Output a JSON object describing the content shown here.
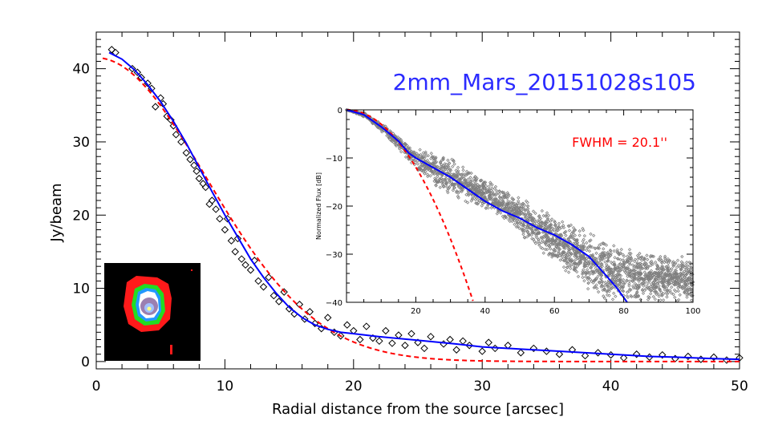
{
  "chart_data": [
    {
      "type": "scatter",
      "title": "2mm_Mars_20151028s105",
      "xlabel": "Radial distance from the source [arcsec]",
      "ylabel": "Jy/beam",
      "xlim": [
        0,
        50
      ],
      "ylim": [
        -1,
        45
      ],
      "xticks": [
        0,
        10,
        20,
        30,
        40,
        50
      ],
      "yticks": [
        0,
        10,
        20,
        30,
        40
      ],
      "grid": false,
      "colors": {
        "title": "#2b2bff",
        "points": "#000000",
        "profile": "#0000ff",
        "gaussian": "#ff0000"
      },
      "points": [
        [
          1.2,
          42.6
        ],
        [
          1.5,
          42.2
        ],
        [
          2.8,
          40
        ],
        [
          3.2,
          39.5
        ],
        [
          3.5,
          38.8
        ],
        [
          4,
          38
        ],
        [
          4.3,
          37.3
        ],
        [
          4.6,
          34.8
        ],
        [
          5,
          36
        ],
        [
          5.2,
          35.2
        ],
        [
          5.5,
          33.5
        ],
        [
          5.8,
          33
        ],
        [
          6,
          32.2
        ],
        [
          6.2,
          31
        ],
        [
          6.6,
          30
        ],
        [
          7,
          28.5
        ],
        [
          7.3,
          27.6
        ],
        [
          7.6,
          26.8
        ],
        [
          7.8,
          26
        ],
        [
          8,
          25
        ],
        [
          8.3,
          24.3
        ],
        [
          8.5,
          23.8
        ],
        [
          8.8,
          21.5
        ],
        [
          9,
          22
        ],
        [
          9.3,
          20.8
        ],
        [
          9.6,
          19.5
        ],
        [
          10,
          18
        ],
        [
          10.2,
          19.5
        ],
        [
          10.5,
          16.5
        ],
        [
          10.8,
          15
        ],
        [
          11,
          16.8
        ],
        [
          11.3,
          14
        ],
        [
          11.6,
          13.2
        ],
        [
          12,
          12.5
        ],
        [
          12.3,
          13.8
        ],
        [
          12.6,
          11
        ],
        [
          13,
          10.2
        ],
        [
          13.4,
          11.5
        ],
        [
          13.8,
          9
        ],
        [
          14.2,
          8.2
        ],
        [
          14.6,
          9.5
        ],
        [
          15,
          7.2
        ],
        [
          15.4,
          6.5
        ],
        [
          15.8,
          7.8
        ],
        [
          16.2,
          5.8
        ],
        [
          16.6,
          6.8
        ],
        [
          17,
          5.2
        ],
        [
          17.5,
          4.5
        ],
        [
          18,
          6
        ],
        [
          18.5,
          4
        ],
        [
          19,
          3.5
        ],
        [
          19.5,
          5
        ],
        [
          20,
          4.2
        ],
        [
          20.5,
          3
        ],
        [
          21,
          4.8
        ],
        [
          21.5,
          3.2
        ],
        [
          22,
          2.8
        ],
        [
          22.5,
          4.2
        ],
        [
          23,
          2.5
        ],
        [
          23.5,
          3.6
        ],
        [
          24,
          2.2
        ],
        [
          24.5,
          3.8
        ],
        [
          25,
          2.6
        ],
        [
          25.5,
          1.8
        ],
        [
          26,
          3.4
        ],
        [
          27,
          2.4
        ],
        [
          27.5,
          3
        ],
        [
          28,
          1.6
        ],
        [
          28.5,
          2.8
        ],
        [
          29,
          2.2
        ],
        [
          30,
          1.4
        ],
        [
          30.5,
          2.6
        ],
        [
          31,
          1.8
        ],
        [
          32,
          2.2
        ],
        [
          33,
          1.2
        ],
        [
          34,
          1.8
        ],
        [
          35,
          1.4
        ],
        [
          36,
          1
        ],
        [
          37,
          1.6
        ],
        [
          38,
          0.8
        ],
        [
          39,
          1.2
        ],
        [
          40,
          0.9
        ],
        [
          41,
          0.5
        ],
        [
          42,
          1
        ],
        [
          43,
          0.6
        ],
        [
          44,
          0.9
        ],
        [
          45,
          0.4
        ],
        [
          46,
          0.7
        ],
        [
          47,
          0.3
        ],
        [
          48,
          0.6
        ],
        [
          49,
          0.2
        ],
        [
          50,
          0.5
        ]
      ],
      "profile": {
        "x": [
          1,
          2,
          3,
          4,
          5,
          6,
          7,
          8,
          9,
          10,
          11,
          12,
          13,
          14,
          15,
          16,
          17,
          18,
          19,
          20,
          22,
          25,
          28,
          30,
          33,
          35,
          38,
          40,
          43,
          45,
          48,
          50
        ],
        "y": [
          42.2,
          41.3,
          39.8,
          37.8,
          35.5,
          32.8,
          29.8,
          26.5,
          23.2,
          20,
          17,
          14,
          11.5,
          9.3,
          7.4,
          6,
          5,
          4.4,
          4,
          3.8,
          3.4,
          2.9,
          2.4,
          2,
          1.7,
          1.5,
          1.2,
          1,
          0.7,
          0.6,
          0.4,
          0.3
        ]
      },
      "gaussian": {
        "amplitude": 41.5,
        "fwhm": 20.1
      }
    },
    {
      "type": "scatter",
      "xlabel": "",
      "ylabel": "Normalized Flux [dB]",
      "xlim": [
        0,
        100
      ],
      "ylim": [
        -40,
        0
      ],
      "xticks": [
        20,
        40,
        60,
        80,
        100
      ],
      "yticks": [
        0,
        -10,
        -20,
        -30,
        -40
      ],
      "annotation": "FWHM = 20.1''",
      "colors": {
        "points": "#808080",
        "profile": "#0000ff",
        "gaussian": "#ff0000",
        "annotation": "#ff0000"
      },
      "points_envelope": {
        "x": [
          0,
          5,
          10,
          15,
          18,
          20,
          25,
          30,
          35,
          40,
          45,
          50,
          55,
          60,
          65,
          70,
          75,
          80,
          85,
          90,
          95,
          100
        ],
        "upper": [
          0,
          -0.5,
          -2.5,
          -5.5,
          -7.5,
          -8,
          -8.5,
          -10,
          -12,
          -14,
          -16,
          -18,
          -20,
          -22,
          -23.5,
          -25,
          -27,
          -28.5,
          -29.5,
          -29.5,
          -30,
          -31
        ],
        "lower": [
          0,
          -1.5,
          -4.5,
          -8,
          -11,
          -13,
          -16,
          -18,
          -19.5,
          -21,
          -23,
          -26,
          -29,
          -32,
          -35,
          -38,
          -40,
          -40,
          -40,
          -40,
          -40,
          -40
        ]
      },
      "profile": {
        "x": [
          0,
          5,
          10,
          15,
          18,
          20,
          25,
          30,
          35,
          40,
          45,
          50,
          55,
          60,
          65,
          70,
          75,
          78,
          80,
          81
        ],
        "y": [
          0,
          -1,
          -3.5,
          -6.5,
          -9,
          -10,
          -12,
          -14,
          -16.5,
          -19,
          -21,
          -22.5,
          -24.5,
          -26,
          -28,
          -30.5,
          -34.5,
          -37,
          -39,
          -40
        ]
      },
      "gaussian_fwhm": 20.1
    }
  ]
}
